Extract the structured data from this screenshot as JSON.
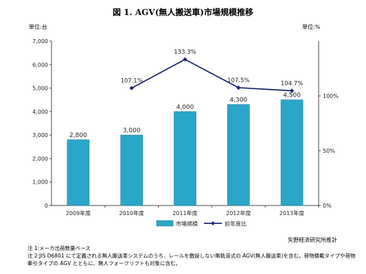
{
  "title": "図 1. AGV(無人搬送車)市場規模推移",
  "unit_left": "単位:台",
  "unit_right": "単位:%",
  "source": "矢野経済研究所推計",
  "notes": [
    "注 1:メーカ出荷数量ベース",
    "注 2:JIS D6801 にて定義される無人搬送車システムのうち、レールを敷設しない無軌道式の AGV(無人搬送車)を含む。荷物積載タイプや荷物牽引タイプの AGV とともに、無人フォークリフトも対象に含む。"
  ],
  "chart_data": {
    "type": "bar",
    "categories": [
      "2009年度",
      "2010年度",
      "2011年度",
      "2012年度",
      "2013年度"
    ],
    "series": [
      {
        "name": "市場規模",
        "type": "bar",
        "axis": "left",
        "values": [
          2800,
          3000,
          4000,
          4300,
          4500
        ],
        "labels": [
          "2,800",
          "3,000",
          "4,000",
          "4,300",
          "4,500"
        ],
        "color": "#2aa6c8"
      },
      {
        "name": "前年度比",
        "type": "line",
        "axis": "right",
        "values": [
          null,
          107.1,
          133.3,
          107.5,
          104.7
        ],
        "labels": [
          "",
          "107.1%",
          "133.3%",
          "107.5%",
          "104.7%"
        ],
        "color": "#1a2a6c"
      }
    ],
    "y_left": {
      "min": 0,
      "max": 7000,
      "ticks": [
        "0",
        "1,000",
        "2,000",
        "3,000",
        "4,000",
        "5,000",
        "6,000",
        "7,000"
      ]
    },
    "y_right": {
      "min": 0,
      "max": 150,
      "ticks": [
        "0%",
        "50%",
        "100%"
      ],
      "tick_values": [
        0,
        50,
        100
      ]
    },
    "grid": false,
    "legend_position": "bottom"
  }
}
